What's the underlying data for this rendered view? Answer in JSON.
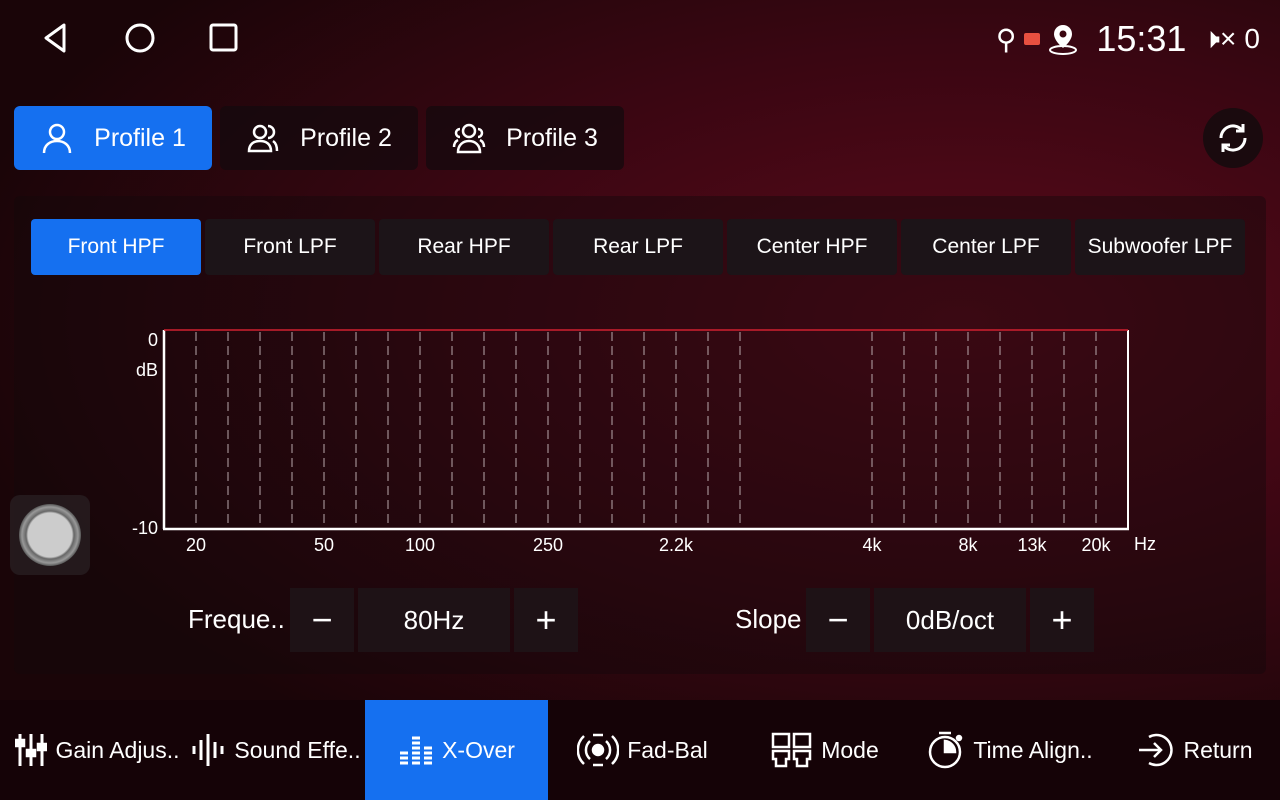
{
  "status": {
    "time": "15:31",
    "volume": "0",
    "icons": [
      "usb-icon",
      "cast-icon",
      "location-icon",
      "mute-icon"
    ]
  },
  "profiles": [
    {
      "label": "Profile 1",
      "active": true
    },
    {
      "label": "Profile 2"
    },
    {
      "label": "Profile 3"
    }
  ],
  "filter_tabs": [
    "Front HPF",
    "Front LPF",
    "Rear HPF",
    "Rear LPF",
    "Center HPF",
    "Center LPF",
    "Subwoofer LPF"
  ],
  "active_filter": "Front HPF",
  "controls": {
    "frequency_label": "Freque..",
    "frequency_value": "80Hz",
    "slope_label": "Slope",
    "slope_value": "0dB/oct",
    "minus": "−",
    "plus": "+"
  },
  "chart_data": {
    "type": "line",
    "y_ticks": [
      "0",
      "-10"
    ],
    "ylabel": "dB",
    "xlabel": "Hz",
    "ylim": [
      -10,
      0
    ],
    "x_ticks": [
      "20",
      "50",
      "100",
      "250",
      "2.2k",
      "4k",
      "8k",
      "13k",
      "20k"
    ],
    "grid": "dashed vertical",
    "series": [
      {
        "values": "flat at 0 dB",
        "color": "#d02030"
      }
    ]
  },
  "bottom_nav": [
    {
      "label": "Gain Adjus.."
    },
    {
      "label": "Sound Effe.."
    },
    {
      "label": "X-Over",
      "active": true
    },
    {
      "label": "Fad-Bal"
    },
    {
      "label": "Mode"
    },
    {
      "label": "Time Align.."
    },
    {
      "label": "Return"
    }
  ],
  "colors": {
    "accent": "#1570f0",
    "response_line": "#d02030"
  }
}
